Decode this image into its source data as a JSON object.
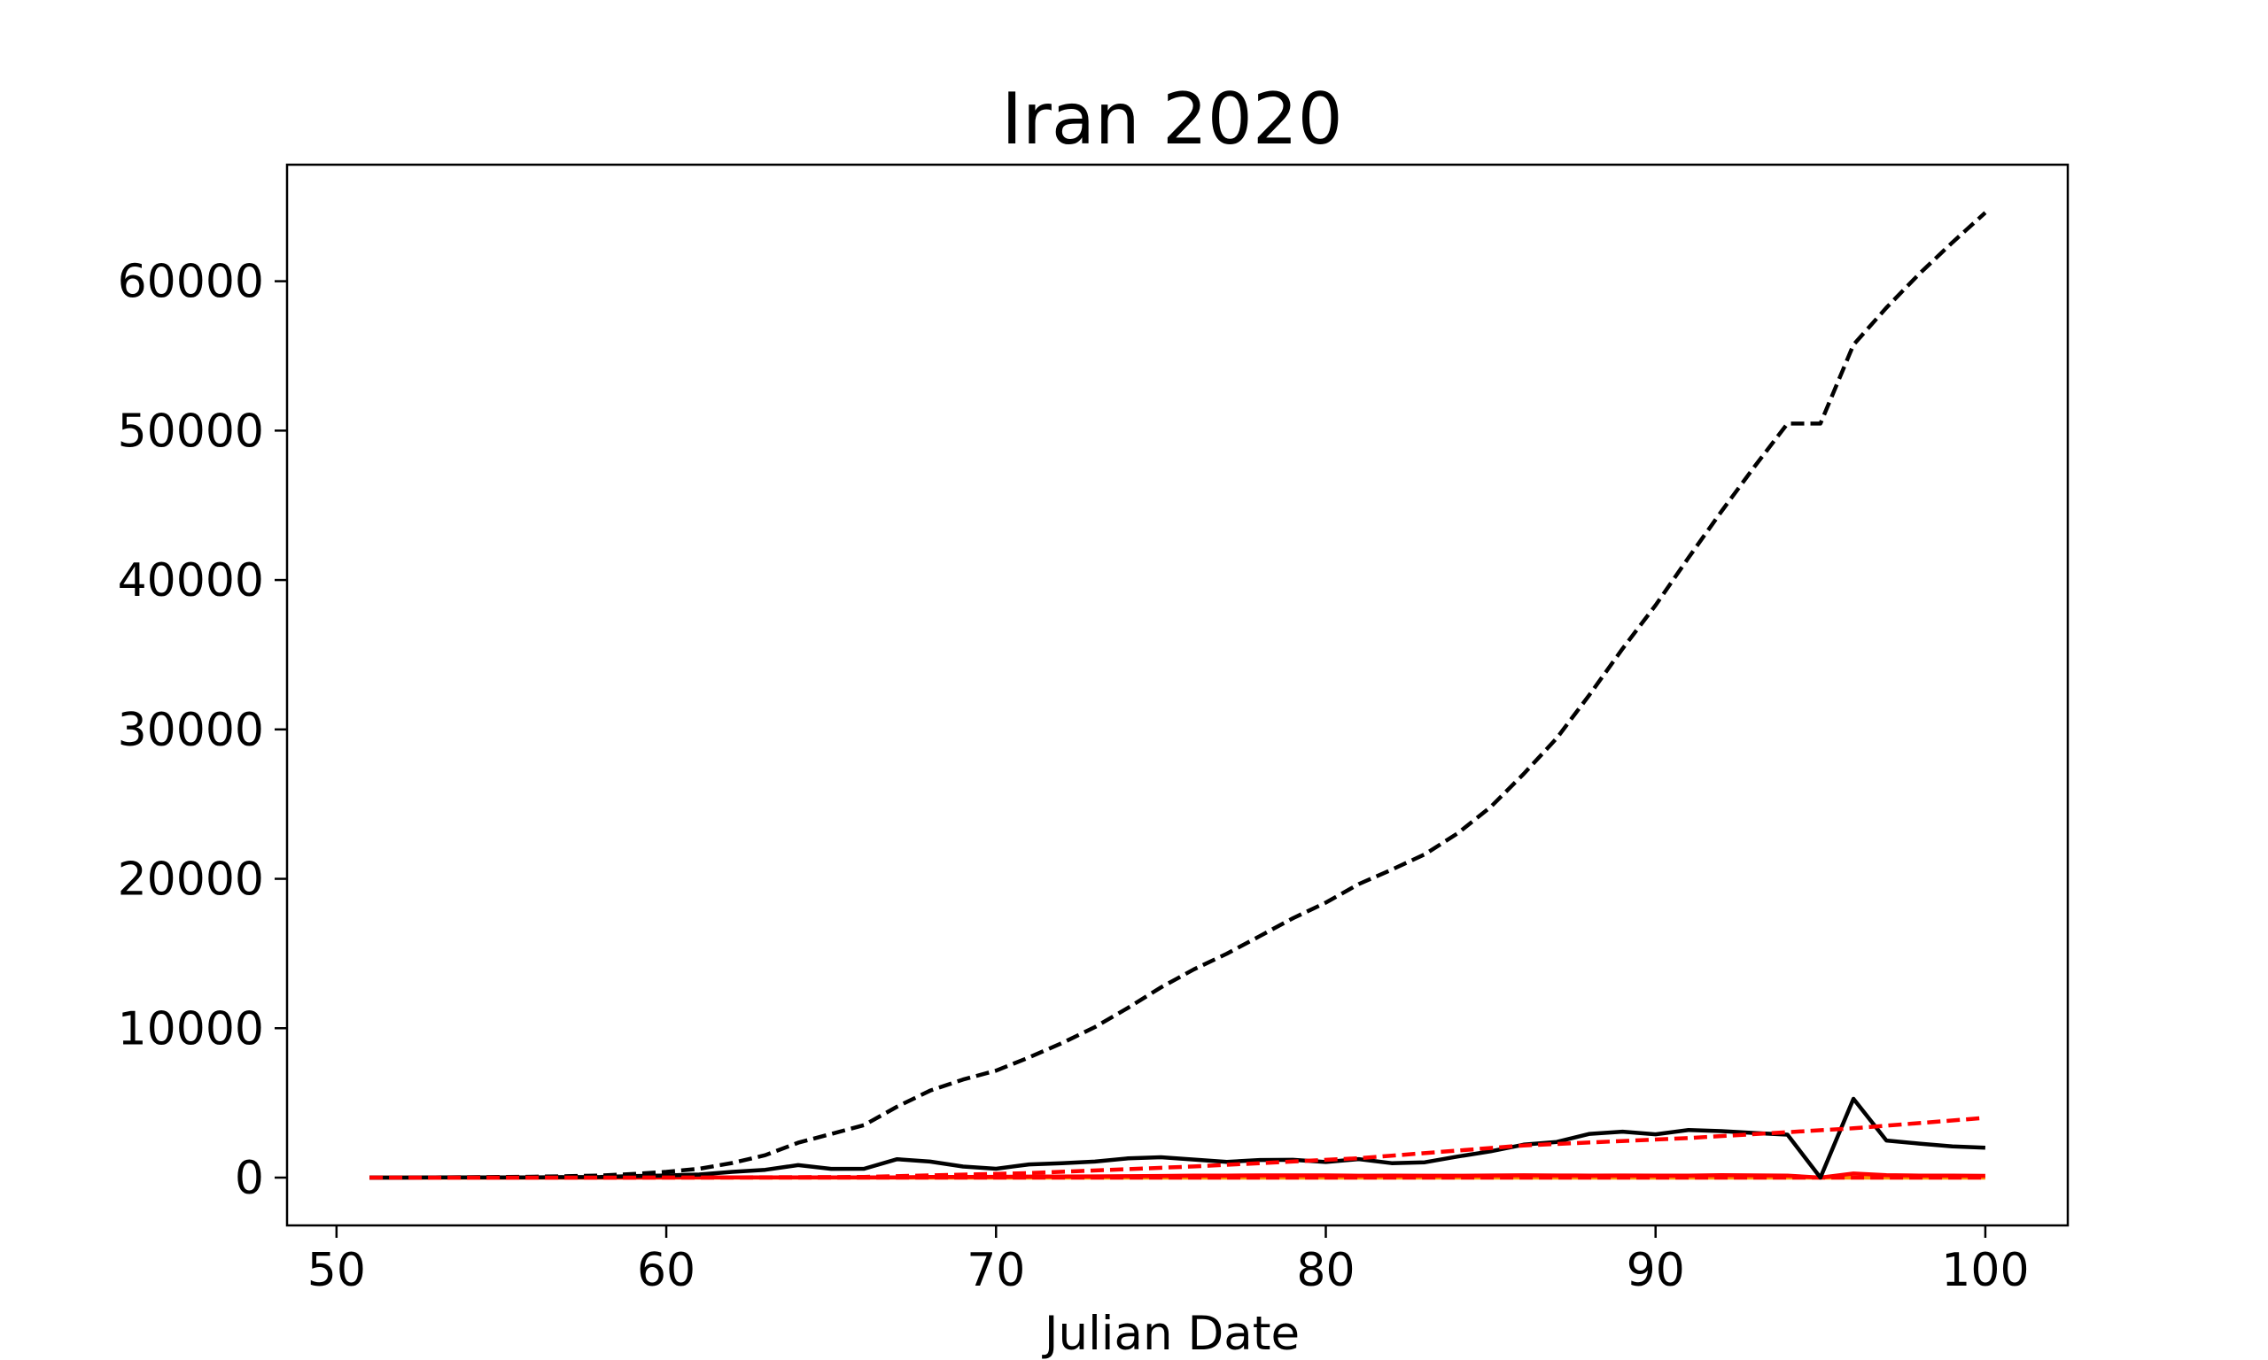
{
  "chart_data": {
    "type": "line",
    "title": "Iran 2020",
    "xlabel": "Julian Date",
    "ylabel": "",
    "xlim": [
      48.5,
      102.5
    ],
    "ylim": [
      -3200,
      67800
    ],
    "x_ticks": [
      50,
      60,
      70,
      80,
      90,
      100
    ],
    "x_tick_labels": [
      "50",
      "60",
      "70",
      "80",
      "90",
      "100"
    ],
    "y_ticks": [
      0,
      10000,
      20000,
      30000,
      40000,
      50000,
      60000
    ],
    "y_tick_labels": [
      "0",
      "10000",
      "20000",
      "30000",
      "40000",
      "50000",
      "60000"
    ],
    "grid": false,
    "legend": "none",
    "x": [
      51,
      52,
      53,
      54,
      55,
      56,
      57,
      58,
      59,
      60,
      61,
      62,
      63,
      64,
      65,
      66,
      67,
      68,
      69,
      70,
      71,
      72,
      73,
      74,
      75,
      76,
      77,
      78,
      79,
      80,
      81,
      82,
      83,
      84,
      85,
      86,
      87,
      88,
      89,
      90,
      91,
      92,
      93,
      94,
      95,
      96,
      97,
      98,
      99,
      100
    ],
    "series": [
      {
        "color": "#000000",
        "style": "dashed",
        "values": [
          2,
          5,
          18,
          28,
          43,
          61,
          95,
          139,
          245,
          388,
          593,
          978,
          1501,
          2336,
          2922,
          3513,
          4747,
          5823,
          6566,
          7161,
          8042,
          9000,
          10075,
          11364,
          12729,
          13938,
          14991,
          16169,
          17361,
          18407,
          19644,
          20610,
          21638,
          23049,
          24811,
          27017,
          29406,
          32332,
          35408,
          38309,
          41495,
          44605,
          47593,
          50468,
          50468,
          55743,
          58226,
          60500,
          62589,
          64586
        ]
      },
      {
        "color": "#000000",
        "style": "solid",
        "values": [
          2,
          3,
          13,
          10,
          15,
          18,
          34,
          44,
          106,
          143,
          205,
          385,
          523,
          835,
          586,
          591,
          1234,
          1076,
          743,
          595,
          881,
          958,
          1075,
          1289,
          1365,
          1209,
          1053,
          1178,
          1192,
          1046,
          1237,
          966,
          1028,
          1411,
          1762,
          2206,
          2389,
          2926,
          3076,
          2901,
          3186,
          3110,
          2988,
          2875,
          0,
          5275,
          2483,
          2274,
          2089,
          1997
        ]
      },
      {
        "color": "#ff0000",
        "style": "dashed",
        "values": [
          0,
          0,
          0,
          0,
          0,
          0,
          0,
          0,
          0,
          0,
          0,
          0,
          0,
          0,
          0,
          0,
          0,
          0,
          0,
          0,
          0,
          0,
          0,
          0,
          0,
          0,
          0,
          0,
          0,
          0,
          0,
          0,
          0,
          0,
          0,
          0,
          0,
          0,
          0,
          0,
          0,
          0,
          0,
          0,
          0,
          0,
          0,
          0,
          0,
          0
        ]
      },
      {
        "color": "#ff0000",
        "style": "solid",
        "values": [
          2,
          2,
          4,
          4,
          3,
          4,
          4,
          7,
          7,
          12,
          11,
          12,
          11,
          15,
          16,
          17,
          21,
          43,
          49,
          54,
          63,
          75,
          85,
          97,
          113,
          129,
          135,
          147,
          149,
          149,
          123,
          129,
          127,
          122,
          143,
          157,
          144,
          139,
          141,
          138,
          134,
          158,
          151,
          136,
          0,
          275,
          158,
          136,
          133,
          121
        ]
      },
      {
        "color": "#ff8c00",
        "style": "solid",
        "values": [
          0,
          0,
          0,
          0,
          0,
          0,
          0,
          0,
          0,
          0,
          0,
          0,
          0,
          0,
          0,
          0,
          0,
          0,
          0,
          0,
          0,
          0,
          0,
          0,
          0,
          0,
          0,
          0,
          0,
          0,
          0,
          0,
          0,
          0,
          0,
          0,
          0,
          0,
          0,
          0,
          0,
          0,
          0,
          0,
          0,
          0,
          0,
          0,
          0,
          0
        ]
      }
    ],
    "red_dashed_trend": {
      "x": [
        51,
        56,
        61,
        66,
        71,
        76,
        81,
        86,
        91,
        96,
        100
      ],
      "values": [
        0,
        0,
        5,
        50,
        300,
        750,
        1300,
        2150,
        2650,
        3300,
        4000
      ]
    }
  }
}
